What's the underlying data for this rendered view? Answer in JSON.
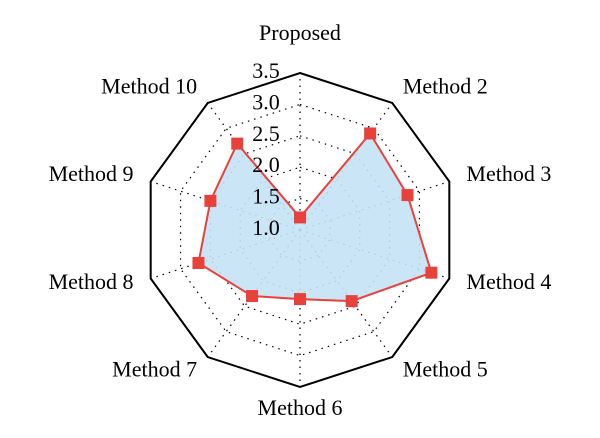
{
  "chart_data": {
    "type": "radar",
    "categories": [
      "Proposed",
      "Method 2",
      "Method 3",
      "Method 4",
      "Method 5",
      "Method 6",
      "Method 7",
      "Method 8",
      "Method 9",
      "Method 10"
    ],
    "values": [
      1.2,
      2.9,
      2.8,
      3.2,
      2.4,
      2.1,
      2.3,
      2.7,
      2.5,
      2.7
    ],
    "rlim": [
      1.0,
      3.5
    ],
    "rticks": [
      {
        "value": 1,
        "label": "1.0"
      },
      1.5,
      {
        "value": 2,
        "label": "2.0"
      },
      2.5,
      {
        "value": 3,
        "label": "3.0"
      },
      3.5
    ],
    "color": "#e8413c",
    "fill_color": "#c4e2f5",
    "grid": true
  }
}
